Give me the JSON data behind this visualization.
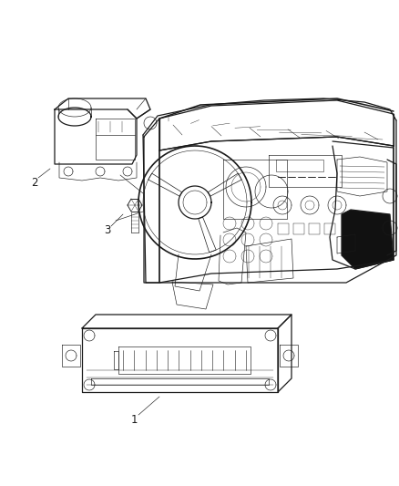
{
  "background_color": "#ffffff",
  "fig_width": 4.38,
  "fig_height": 5.33,
  "dpi": 100,
  "line_color": "#1a1a1a",
  "dark_fill": "#2a2a2a",
  "mid_fill": "#888888",
  "light_fill": "#cccccc",
  "label_fontsize": 8.5,
  "lw_main": 0.9,
  "lw_thin": 0.45,
  "lw_thick": 1.4
}
